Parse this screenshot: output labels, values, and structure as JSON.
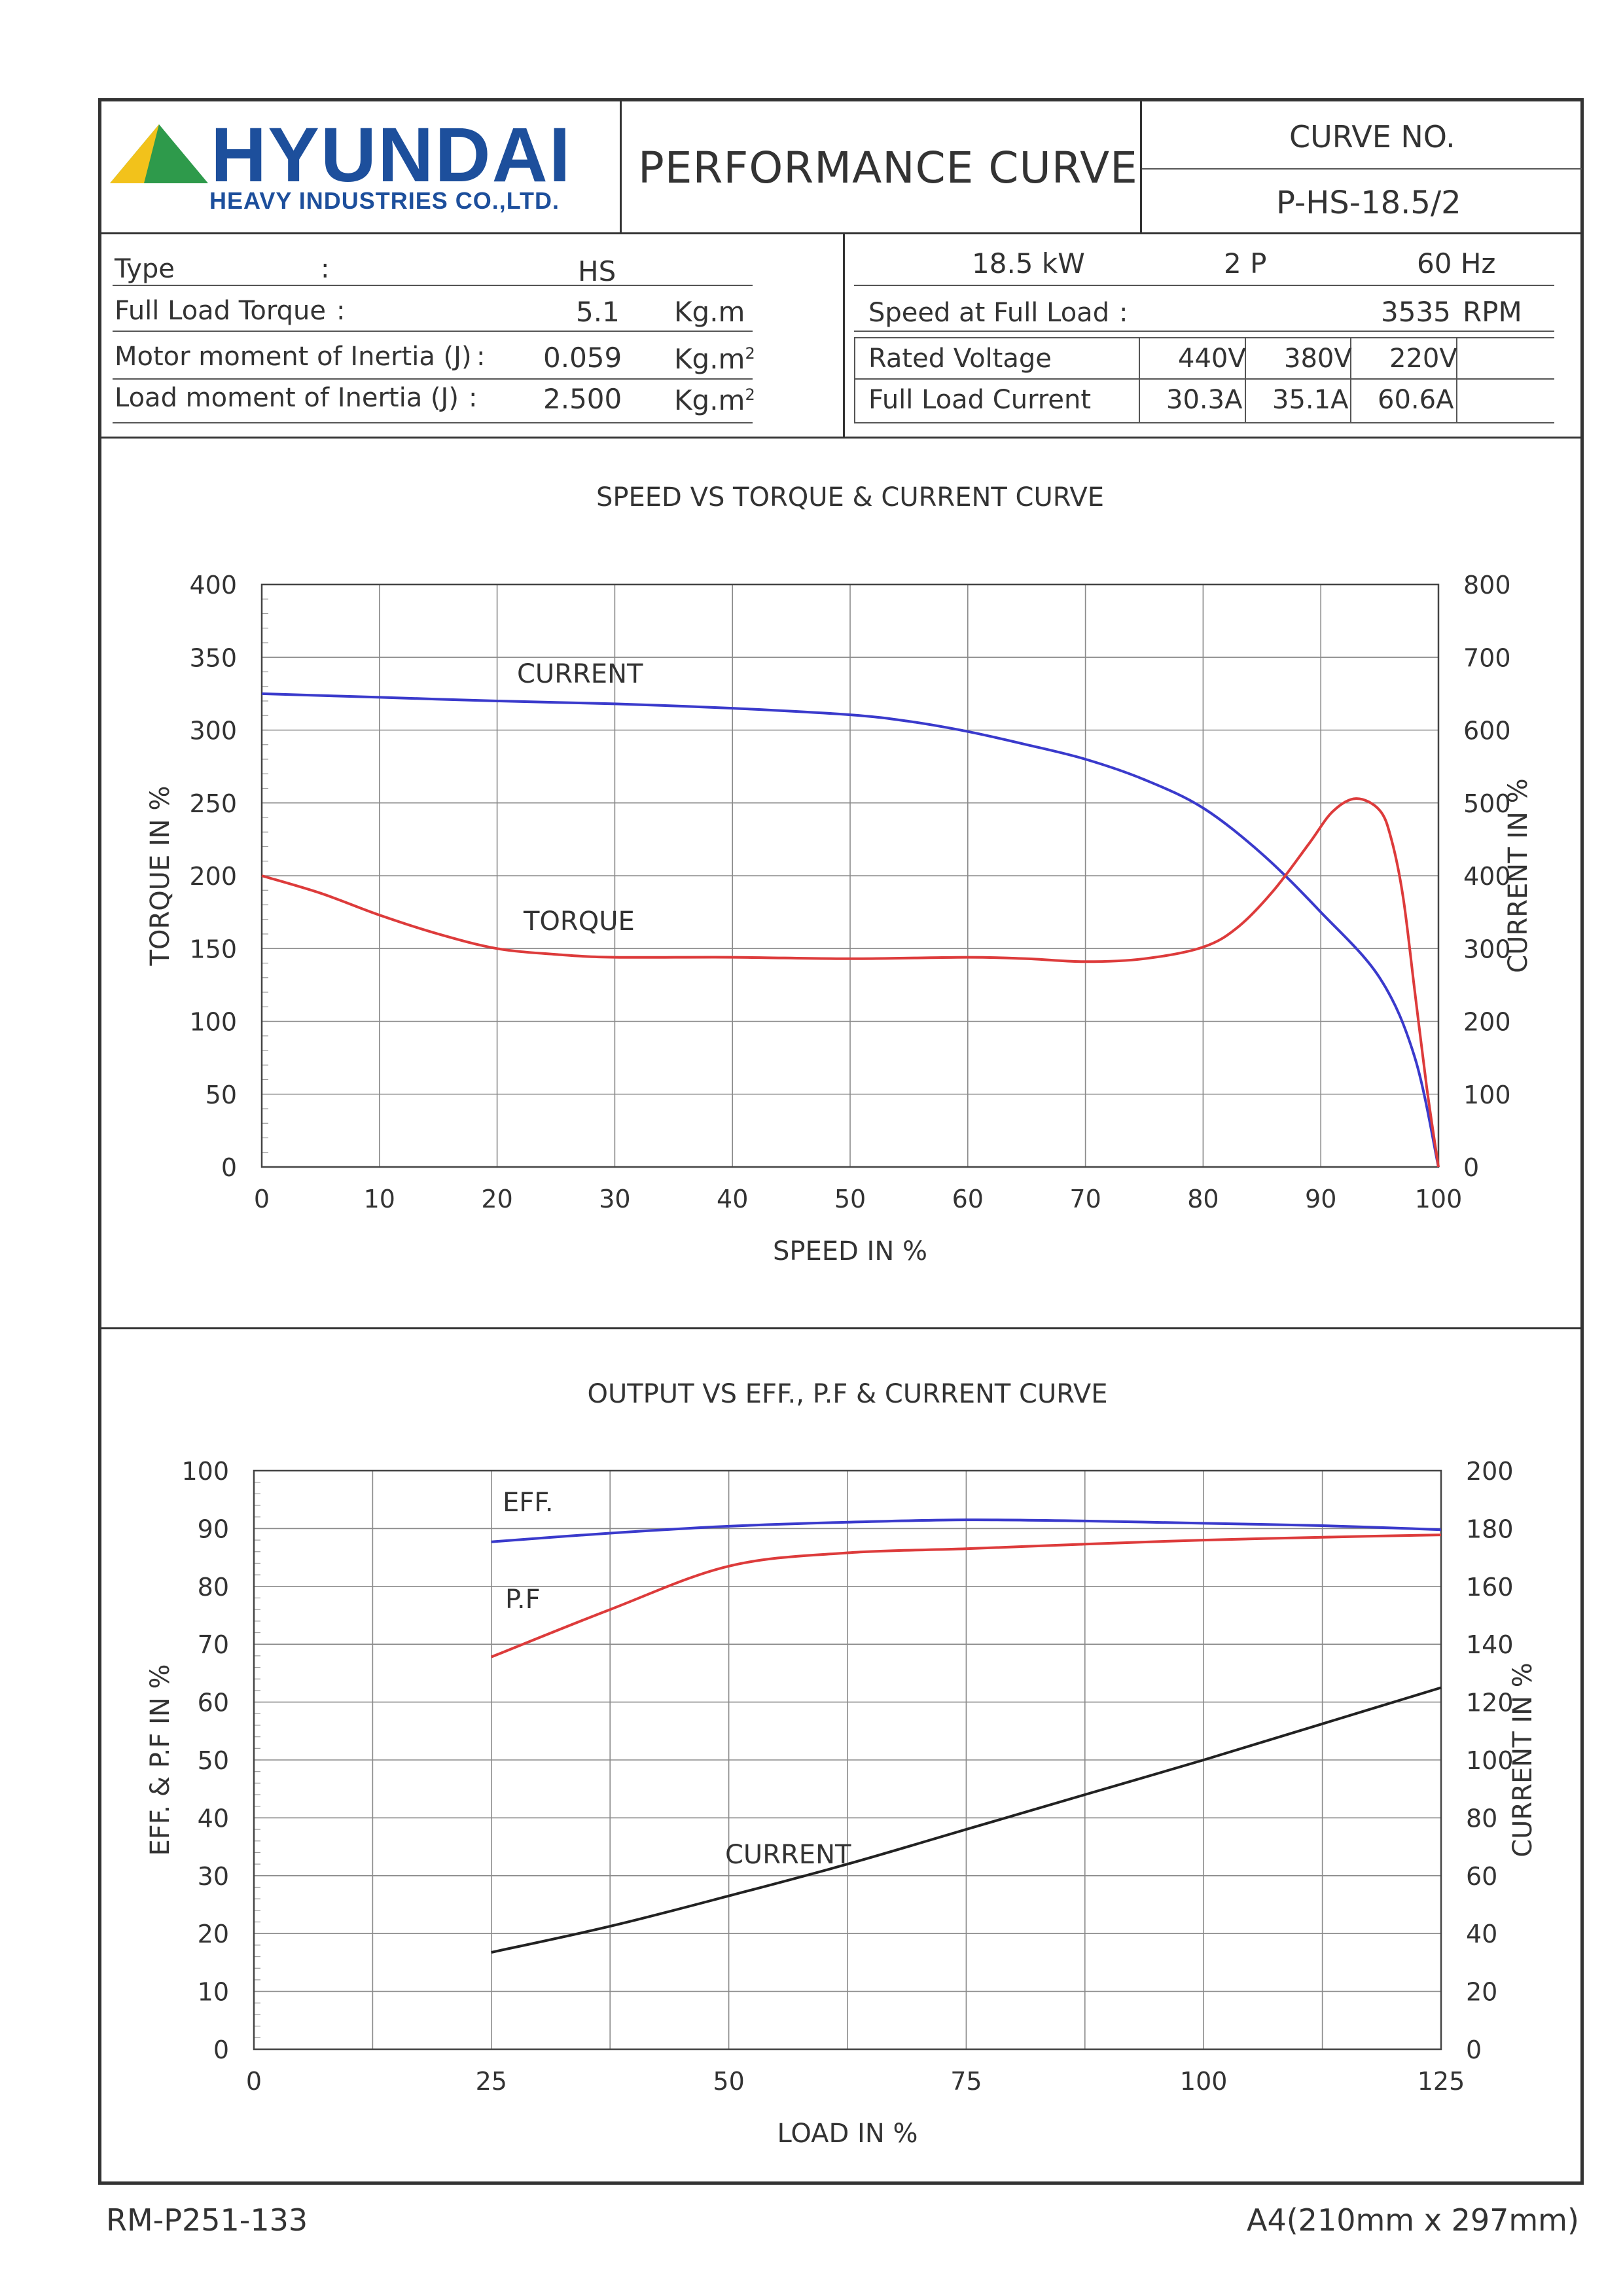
{
  "header": {
    "brand": "HYUNDAI",
    "brand_sub": "HEAVY INDUSTRIES CO.,LTD.",
    "title": "PERFORMANCE CURVE",
    "curve_no_label": "CURVE NO.",
    "curve_no": "P-HS-18.5/2"
  },
  "specs_left": [
    {
      "label": "Type",
      "sep": ":",
      "value": "HS",
      "unit": ""
    },
    {
      "label": "Full Load Torque",
      "sep": ":",
      "value": "5.1",
      "unit": "Kg.m"
    },
    {
      "label": "Motor moment of Inertia (J)",
      "sep": ":",
      "value": "0.059",
      "unit": "Kg.m",
      "unit_sup": "2"
    },
    {
      "label": "Load moment of Inertia (J)",
      "sep": ":",
      "value": "2.500",
      "unit": "Kg.m",
      "unit_sup": "2"
    }
  ],
  "specs_right": {
    "power": "18.5",
    "power_unit": "kW",
    "poles": "2",
    "poles_unit": "P",
    "freq": "60",
    "freq_unit": "Hz",
    "speed_label": "Speed at Full Load",
    "speed_sep": ":",
    "speed": "3535",
    "speed_unit": "RPM",
    "voltage_label": "Rated Voltage",
    "voltages": [
      "440V",
      "380V",
      "220V"
    ],
    "current_label": "Full Load Current",
    "currents": [
      "30.3A",
      "35.1A",
      "60.6A"
    ]
  },
  "chart_data": [
    {
      "type": "line",
      "title": "SPEED VS TORQUE & CURRENT CURVE",
      "xlabel": "SPEED IN %",
      "ylabel": "TORQUE IN %",
      "y2label": "CURRENT IN %",
      "xlim": [
        0,
        100
      ],
      "ylim": [
        0,
        400
      ],
      "y2lim": [
        0,
        800
      ],
      "xticks": [
        "0",
        "10",
        "20",
        "30",
        "40",
        "50",
        "60",
        "70",
        "80",
        "90",
        "100"
      ],
      "yticks": [
        "0",
        "50",
        "100",
        "150",
        "200",
        "250",
        "300",
        "350",
        "400"
      ],
      "y2ticks": [
        "0",
        "100",
        "200",
        "300",
        "400",
        "500",
        "600",
        "700",
        "800"
      ],
      "grid": true,
      "series": [
        {
          "name": "CURRENT",
          "axis": "right",
          "color": "#3a3acc",
          "x": [
            0,
            10,
            20,
            30,
            40,
            50,
            55,
            60,
            65,
            70,
            75,
            80,
            85,
            90,
            95,
            98,
            100
          ],
          "y": [
            650,
            645,
            640,
            636,
            630,
            621,
            612,
            598,
            580,
            560,
            532,
            493,
            430,
            350,
            260,
            150,
            0
          ]
        },
        {
          "name": "TORQUE",
          "axis": "left",
          "color": "#dd3b3b",
          "x": [
            0,
            5,
            10,
            15,
            20,
            25,
            30,
            40,
            50,
            60,
            65,
            70,
            75,
            80,
            83,
            86,
            89,
            91,
            93,
            95,
            96,
            97,
            98,
            99,
            100
          ],
          "y": [
            200,
            188,
            173,
            160,
            150,
            146,
            144,
            144,
            143,
            144,
            143,
            141,
            143,
            151,
            165,
            190,
            222,
            244,
            253,
            245,
            225,
            185,
            120,
            55,
            0
          ]
        }
      ]
    },
    {
      "type": "line",
      "title": "OUTPUT VS EFF., P.F & CURRENT CURVE",
      "xlabel": "LOAD IN %",
      "ylabel": "EFF. & P.F IN %",
      "y2label": "CURRENT IN %",
      "xlim": [
        0,
        125
      ],
      "ylim": [
        0,
        100
      ],
      "y2lim": [
        0,
        200
      ],
      "xticks": [
        "0",
        "25",
        "50",
        "75",
        "100",
        "125"
      ],
      "yticks": [
        "0",
        "10",
        "20",
        "30",
        "40",
        "50",
        "60",
        "70",
        "80",
        "90",
        "100"
      ],
      "y2ticks": [
        "0",
        "20",
        "40",
        "60",
        "80",
        "100",
        "120",
        "140",
        "160",
        "180",
        "200"
      ],
      "grid": true,
      "series": [
        {
          "name": "EFF.",
          "axis": "left",
          "color": "#3a3acc",
          "x": [
            25,
            37.5,
            50,
            62.5,
            75,
            87.5,
            100,
            112.5,
            125
          ],
          "y": [
            87.7,
            89.2,
            90.4,
            91.1,
            91.5,
            91.3,
            90.9,
            90.5,
            89.8
          ]
        },
        {
          "name": "P.F",
          "axis": "left",
          "color": "#dd3b3b",
          "x": [
            25,
            37.5,
            50,
            62.5,
            75,
            87.5,
            100,
            112.5,
            125
          ],
          "y": [
            67.8,
            76.0,
            83.5,
            85.8,
            86.5,
            87.3,
            88.0,
            88.5,
            88.9
          ]
        },
        {
          "name": "CURRENT",
          "axis": "right",
          "color": "#222222",
          "x": [
            25,
            37.5,
            50,
            62.5,
            75,
            87.5,
            100,
            112.5,
            125
          ],
          "y": [
            33.5,
            42.5,
            53,
            64,
            76,
            88,
            100,
            112.5,
            125
          ]
        }
      ]
    }
  ],
  "footer": {
    "left": "RM-P251-133",
    "right": "A4(210mm x 297mm)"
  },
  "colors": {
    "logo_yellow": "#f2c21b",
    "logo_green": "#2e9a4b",
    "logo_blue": "#1d4f9c"
  }
}
